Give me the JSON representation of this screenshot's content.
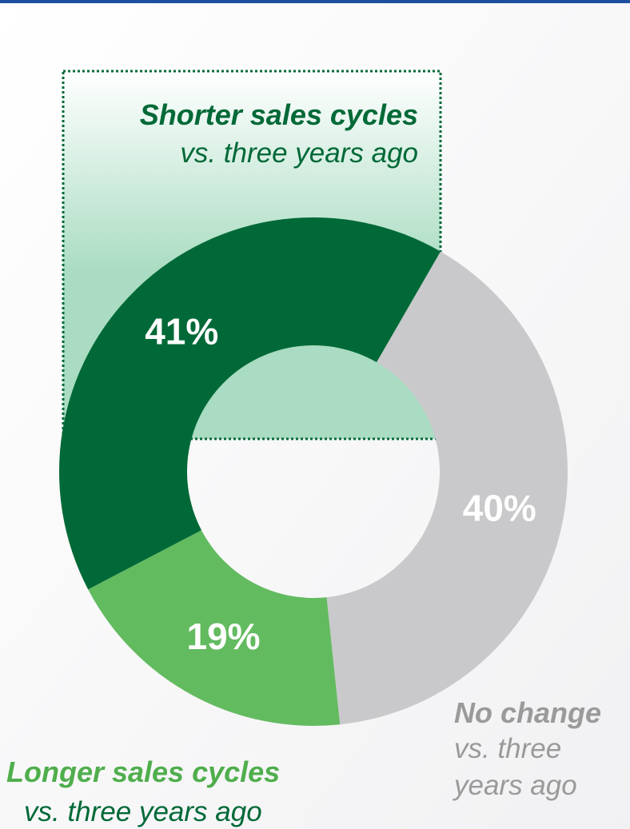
{
  "chart_data": {
    "type": "donut",
    "categories": [
      "No change",
      "Longer sales cycles",
      "Shorter sales cycles"
    ],
    "category_subtitles": [
      "vs. three years ago",
      "vs. three years ago",
      "vs. three years ago"
    ],
    "values": [
      40,
      19,
      41
    ],
    "value_labels": [
      "40%",
      "19%",
      "41%"
    ],
    "colors": [
      "#c9c9cb",
      "#63bb60",
      "#006937"
    ]
  }
}
